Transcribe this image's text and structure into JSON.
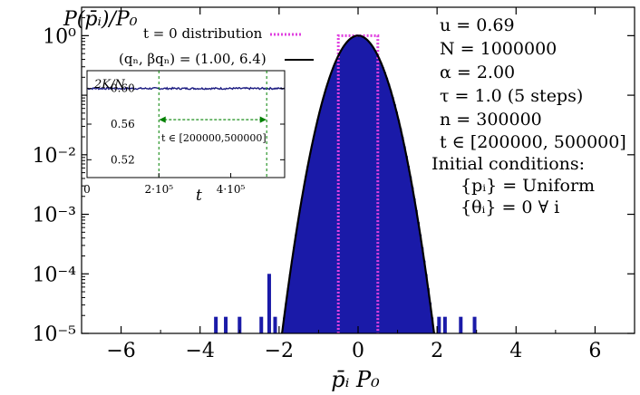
{
  "chart_data": [
    {
      "type": "bar",
      "role": "main",
      "xlabel": "p̄ᵢ P₀",
      "ylabel": "P(p̄ᵢ)/P₀",
      "xlim": [
        -7,
        7
      ],
      "ylim": [
        1e-05,
        3
      ],
      "y_scale": "log",
      "x_ticks": [
        -6,
        -4,
        -2,
        0,
        2,
        4,
        6
      ],
      "x_tick_labels": [
        "−6",
        "−4",
        "−2",
        "0",
        "2",
        "4",
        "6"
      ],
      "y_ticks": [
        1e-05,
        0.0001,
        0.001,
        0.01,
        0.1,
        1
      ],
      "y_tick_labels": [
        "10⁻⁵",
        "10⁻⁴",
        "10⁻³",
        "10⁻²",
        "10⁻¹",
        "10⁰"
      ],
      "histogram": {
        "bin_width": 0.05,
        "x_range": [
          -1.9,
          1.9
        ],
        "peak": 1.0,
        "beta": 3.1,
        "color": "#1a1aa8",
        "outliers": [
          {
            "x": -3.6,
            "y": 1e-05
          },
          {
            "x": -3.35,
            "y": 1e-05
          },
          {
            "x": -3.0,
            "y": 1e-05
          },
          {
            "x": -2.45,
            "y": 1e-05
          },
          {
            "x": -2.25,
            "y": 0.0001
          },
          {
            "x": -2.1,
            "y": 1e-05
          },
          {
            "x": 2.05,
            "y": 1e-05
          },
          {
            "x": 2.2,
            "y": 1e-05
          },
          {
            "x": 2.6,
            "y": 1e-05
          },
          {
            "x": 2.95,
            "y": 1e-05
          }
        ]
      },
      "initial_distribution": {
        "x_range": [
          -0.5,
          0.5
        ],
        "y": 1.0,
        "color": "#e040e0"
      },
      "fit_curve": {
        "q": 1.0,
        "beta": 6.4,
        "color": "#000000"
      },
      "legend": [
        {
          "label": "t = 0 distribution",
          "style": "dotted",
          "color": "#e040e0"
        },
        {
          "label": "(qₙ, βqₙ) = (1.00, 6.4)",
          "style": "solid",
          "color": "#000000"
        }
      ]
    },
    {
      "type": "line",
      "role": "inset",
      "ylabel": "2K/N",
      "xlabel": "t",
      "xlim": [
        0,
        550000
      ],
      "ylim": [
        0.5,
        0.62
      ],
      "x_ticks": [
        0,
        200000,
        400000
      ],
      "x_tick_labels": [
        "0",
        "2·10⁵",
        "4·10⁵"
      ],
      "y_ticks": [
        0.52,
        0.56,
        0.6
      ],
      "y_tick_labels": [
        "0.52",
        "0.56",
        "0.60"
      ],
      "series": [
        {
          "x": [
            0,
            550000
          ],
          "y": [
            0.6,
            0.6
          ],
          "color": "#1a1a80"
        }
      ],
      "vlines": [
        200000,
        500000
      ],
      "vline_color": "#008000",
      "annotation": {
        "text": "t ∈ [200000,500000]",
        "arrow_from": 200000,
        "arrow_to": 500000,
        "arrow_y": 0.565
      }
    }
  ],
  "parameters": [
    "u = 0.69",
    "N = 1000000",
    "α = 2.00",
    "τ = 1.0 (5 steps)",
    "n  = 300000",
    "t ∈ [200000, 500000]",
    "Initial conditions:",
    "{pᵢ} = Uniform",
    "{θᵢ} = 0 ∀ i"
  ]
}
